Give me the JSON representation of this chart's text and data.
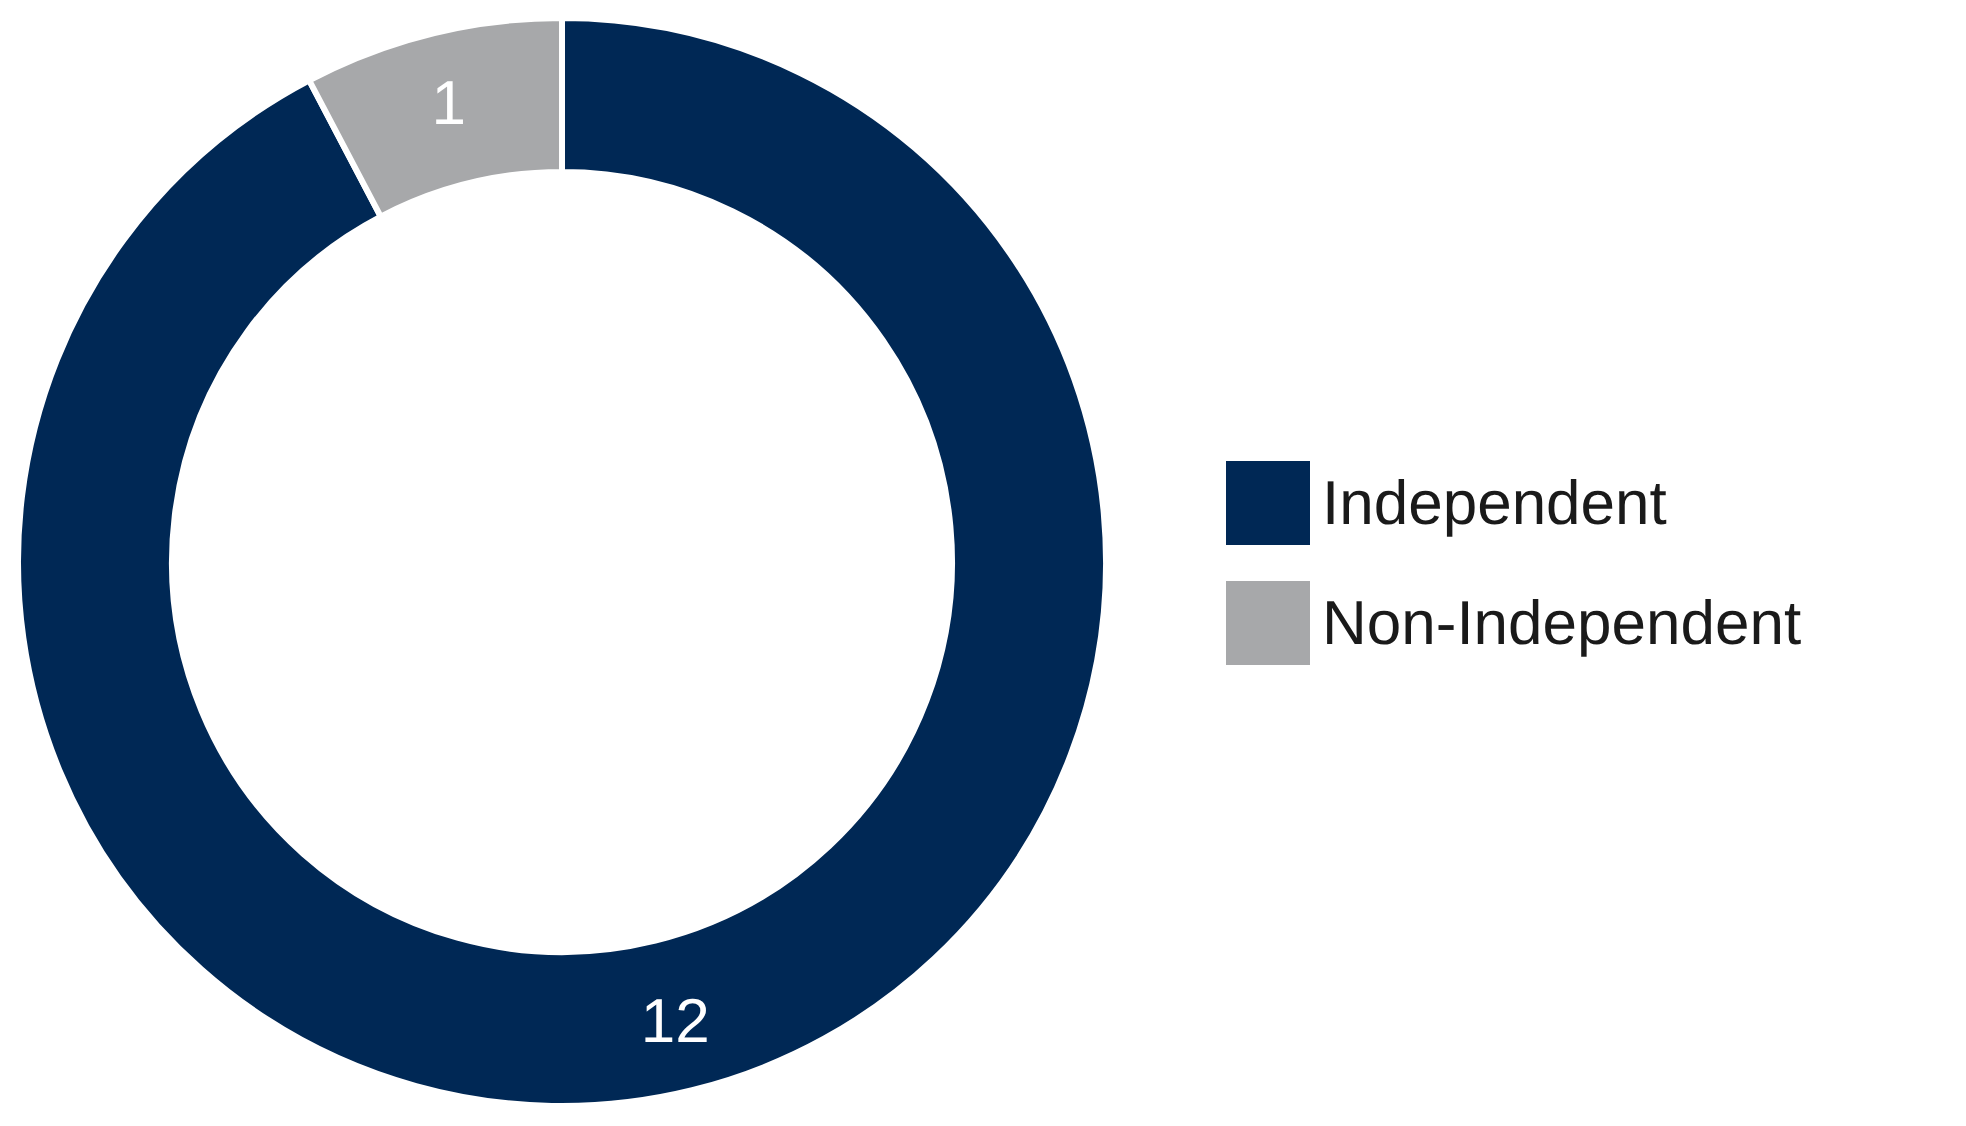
{
  "chart_data": {
    "type": "donut",
    "categories": [
      "Independent",
      "Non-Independent"
    ],
    "values": [
      12,
      1
    ],
    "colors": [
      "#002855",
      "#a7a8aa"
    ],
    "data_labels": true,
    "legend": "right"
  }
}
